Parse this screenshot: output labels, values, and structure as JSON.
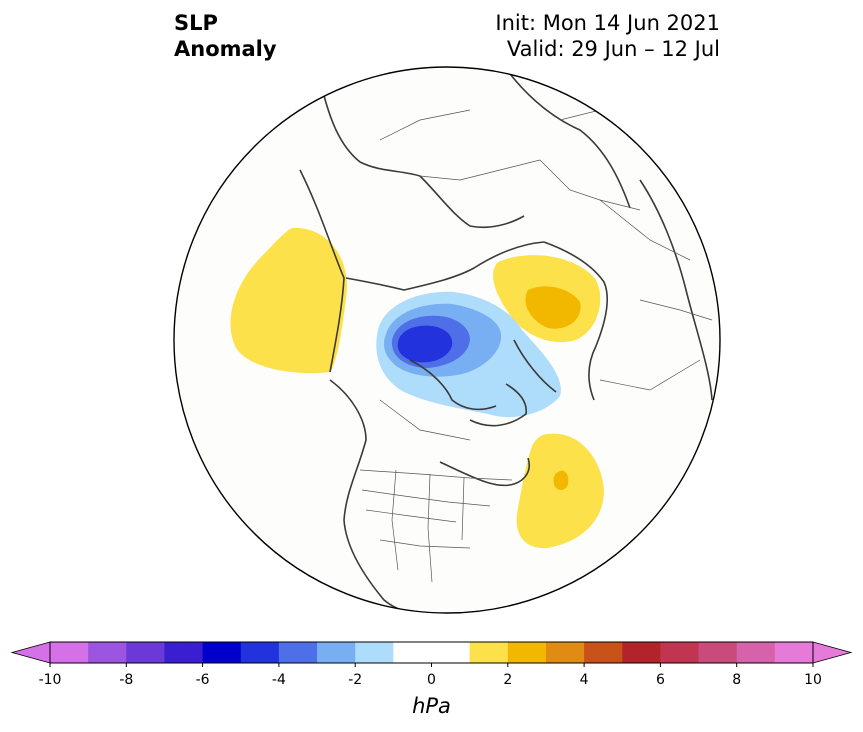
{
  "title": {
    "left_line1": "SLP",
    "left_line2": "Anomaly",
    "right_line1": "Init: Mon 14 Jun 2021",
    "right_line2": "Valid: 29 Jun – 12 Jul"
  },
  "map": {
    "projection": "north-polar-stereographic",
    "anomalies": [
      {
        "region": "North Pacific / Alaska",
        "sign": "positive",
        "max_level": 1
      },
      {
        "region": "Eurasian Arctic / Siberia",
        "sign": "positive",
        "max_level": 2
      },
      {
        "region": "Canadian Arctic / Greenland",
        "sign": "negative",
        "max_level": -5
      },
      {
        "region": "North Atlantic",
        "sign": "positive",
        "max_level": 2
      }
    ]
  },
  "colorbar": {
    "unit": "hPa",
    "ticks": [
      "-10",
      "-8",
      "-6",
      "-4",
      "-2",
      "0",
      "2",
      "4",
      "6",
      "8",
      "10"
    ],
    "colors": [
      "#d670e8",
      "#9b55e0",
      "#6b39d8",
      "#3a1fd0",
      "#0000cc",
      "#2233dd",
      "#4f6fe8",
      "#78aef2",
      "#aedcfb",
      "#ffffff",
      "#ffffff",
      "#fde14a",
      "#f2b800",
      "#e08b13",
      "#c8521a",
      "#b2242a",
      "#c23550",
      "#c94b7c",
      "#d762ac",
      "#e57ad8"
    ],
    "extend_low": "#d670e8",
    "extend_high": "#e57ad8"
  }
}
